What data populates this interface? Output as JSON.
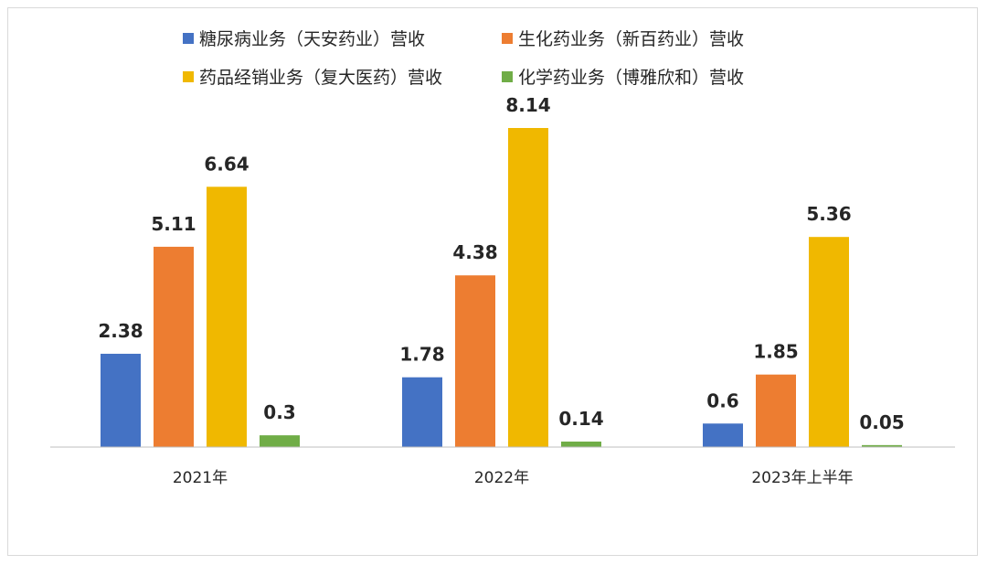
{
  "chart_data": {
    "type": "bar",
    "title": "",
    "xlabel": "",
    "ylabel": "",
    "ylim": [
      0,
      8.5
    ],
    "grid": false,
    "legend_position": "top",
    "categories": [
      "2021年",
      "2022年",
      "2023年上半年"
    ],
    "series": [
      {
        "name": "糖尿病业务（天安药业）营收",
        "color": "#4472c4",
        "values": [
          2.38,
          1.78,
          0.6
        ],
        "labels": [
          "2.38",
          "1.78",
          "0.6"
        ]
      },
      {
        "name": "生化药业务（新百药业）营收",
        "color": "#ed7d31",
        "values": [
          5.11,
          4.38,
          1.85
        ],
        "labels": [
          "5.11",
          "4.38",
          "1.85"
        ]
      },
      {
        "name": "药品经销业务（复大医药）营收",
        "color": "#f0b800",
        "values": [
          6.64,
          8.14,
          5.36
        ],
        "labels": [
          "6.64",
          "8.14",
          "5.36"
        ]
      },
      {
        "name": "化学药业务（博雅欣和）营收",
        "color": "#70ad47",
        "values": [
          0.3,
          0.14,
          0.05
        ],
        "labels": [
          "0.3",
          "0.14",
          "0.05"
        ]
      }
    ]
  }
}
